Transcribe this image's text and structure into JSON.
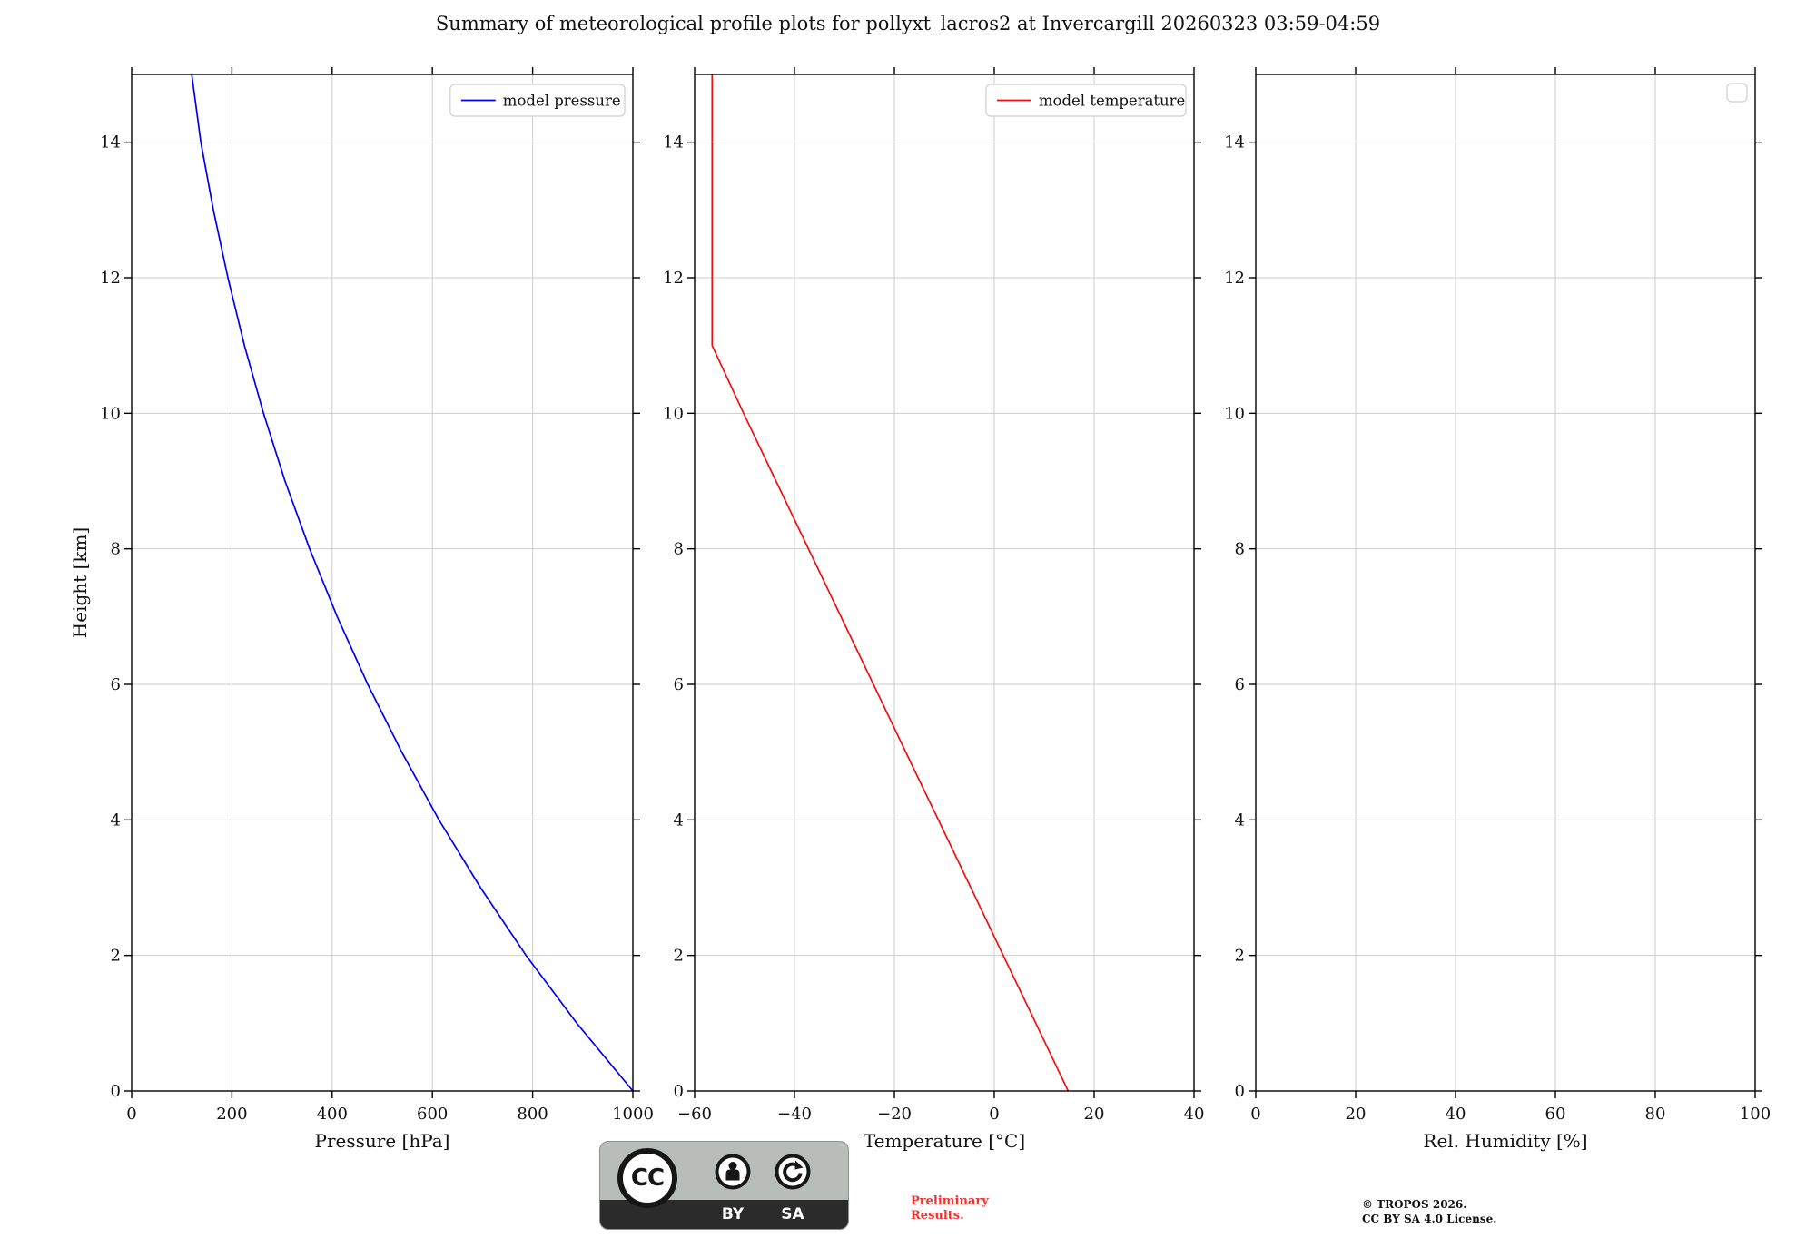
{
  "title": "Summary of meteorological profile plots for pollyxt_lacros2 at Invercargill 20260323 03:59-04:59",
  "ylabel": "Height [km]",
  "chart_data": [
    {
      "type": "line",
      "id": "pressure",
      "xlabel": "Pressure [hPa]",
      "xlim": [
        0,
        1000
      ],
      "xticks": [
        0,
        200,
        400,
        600,
        800,
        1000
      ],
      "ylim": [
        0,
        15
      ],
      "yticks": [
        0,
        2,
        4,
        6,
        8,
        10,
        12,
        14
      ],
      "grid": true,
      "legend": {
        "label": "model pressure",
        "position": "upper right",
        "empty": false
      },
      "series": [
        {
          "name": "model pressure",
          "color": "#0000f0",
          "x": [
            1000,
            888,
            787,
            696,
            613,
            539,
            471,
            410,
            355,
            306,
            263,
            225,
            192,
            163,
            138,
            120
          ],
          "y": [
            0,
            1,
            2,
            3,
            4,
            5,
            6,
            7,
            8,
            9,
            10,
            11,
            12,
            13,
            14,
            15
          ]
        }
      ]
    },
    {
      "type": "line",
      "id": "temperature",
      "xlabel": "Temperature [°C]",
      "xlim": [
        -60,
        40
      ],
      "xticks": [
        -60,
        -40,
        -20,
        0,
        20,
        40
      ],
      "ylim": [
        0,
        15
      ],
      "yticks": [
        0,
        2,
        4,
        6,
        8,
        10,
        12,
        14
      ],
      "grid": true,
      "legend": {
        "label": "model temperature",
        "position": "upper right",
        "empty": false
      },
      "series": [
        {
          "name": "model temperature",
          "color": "#f01010",
          "x": [
            14.8,
            8.3,
            1.8,
            -4.7,
            -11.2,
            -17.7,
            -24.2,
            -30.7,
            -37.2,
            -43.7,
            -50.2,
            -56.5,
            -56.5,
            -56.5,
            -56.5,
            -56.5
          ],
          "y": [
            0,
            1,
            2,
            3,
            4,
            5,
            6,
            7,
            8,
            9,
            10,
            11,
            12,
            13,
            14,
            15
          ]
        }
      ]
    },
    {
      "type": "line",
      "id": "humidity",
      "xlabel": "Rel. Humidity [%]",
      "xlim": [
        0,
        100
      ],
      "xticks": [
        0,
        20,
        40,
        60,
        80,
        100
      ],
      "ylim": [
        0,
        15
      ],
      "yticks": [
        0,
        2,
        4,
        6,
        8,
        10,
        12,
        14
      ],
      "grid": true,
      "legend": {
        "label": "",
        "position": "upper right",
        "empty": true
      },
      "series": []
    }
  ],
  "footer": {
    "badge": {
      "cc": "CC",
      "by": "BY",
      "sa": "SA"
    },
    "preliminary": [
      "Preliminary",
      "Results."
    ],
    "preliminary_color": "#f53232",
    "copyright": [
      "© TROPOS 2026.",
      "CC BY SA 4.0 License."
    ]
  }
}
